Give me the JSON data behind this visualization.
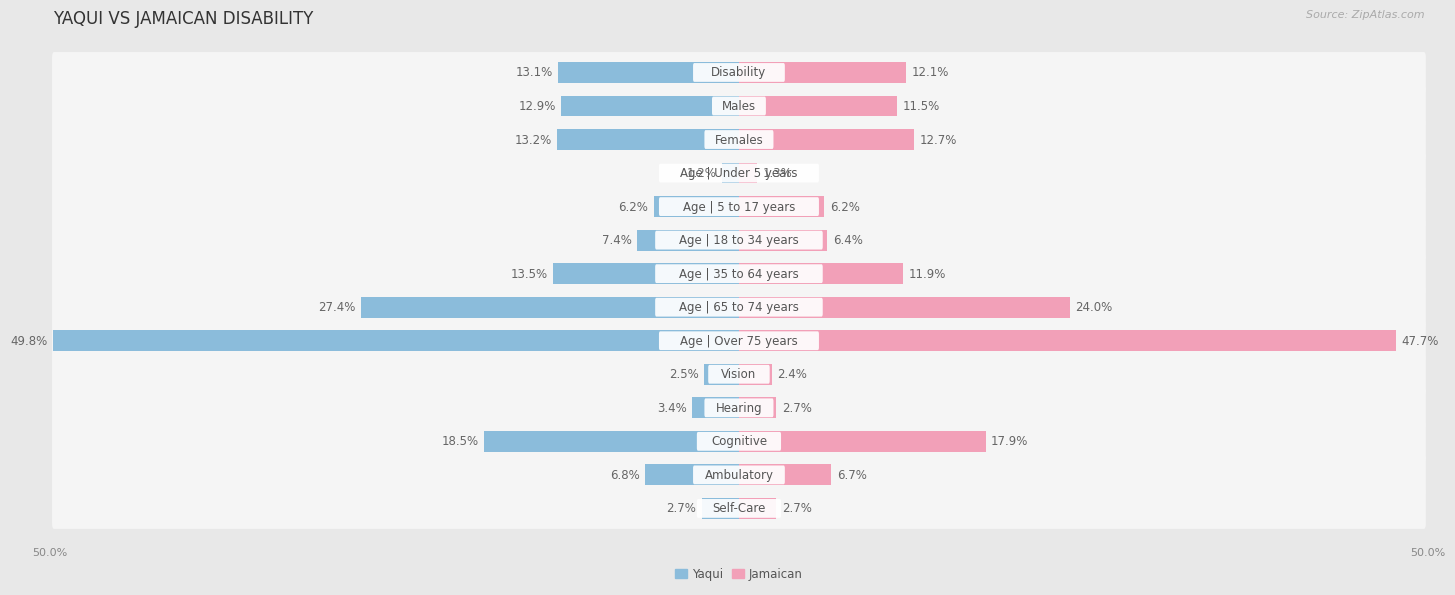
{
  "title": "YAQUI VS JAMAICAN DISABILITY",
  "source": "Source: ZipAtlas.com",
  "categories": [
    "Disability",
    "Males",
    "Females",
    "Age | Under 5 years",
    "Age | 5 to 17 years",
    "Age | 18 to 34 years",
    "Age | 35 to 64 years",
    "Age | 65 to 74 years",
    "Age | Over 75 years",
    "Vision",
    "Hearing",
    "Cognitive",
    "Ambulatory",
    "Self-Care"
  ],
  "yaqui_values": [
    13.1,
    12.9,
    13.2,
    1.2,
    6.2,
    7.4,
    13.5,
    27.4,
    49.8,
    2.5,
    3.4,
    18.5,
    6.8,
    2.7
  ],
  "jamaican_values": [
    12.1,
    11.5,
    12.7,
    1.3,
    6.2,
    6.4,
    11.9,
    24.0,
    47.7,
    2.4,
    2.7,
    17.9,
    6.7,
    2.7
  ],
  "yaqui_color": "#8bbcdb",
  "jamaican_color": "#f2a0b8",
  "yaqui_label": "Yaqui",
  "jamaican_label": "Jamaican",
  "xlim": 50.0,
  "background_color": "#e8e8e8",
  "bar_bg_color": "#f5f5f5",
  "title_fontsize": 12,
  "label_fontsize": 8.5,
  "value_fontsize": 8.5,
  "axis_tick_fontsize": 8,
  "source_fontsize": 8
}
